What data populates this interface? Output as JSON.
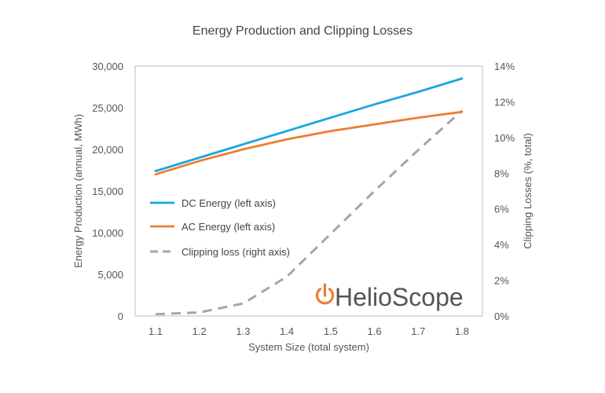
{
  "chart_data": {
    "type": "line",
    "title": "Energy Production and Clipping Losses",
    "xlabel": "System Size (total system)",
    "ylabel_left": "Energy Production (annual, MWh)",
    "ylabel_right": "Clipping Losses  (%, total)",
    "x": [
      1.1,
      1.2,
      1.3,
      1.4,
      1.5,
      1.6,
      1.7,
      1.8
    ],
    "x_tick_labels": [
      "1.1",
      "1.2",
      "1.3",
      "1.4",
      "1.5",
      "1.6",
      "1.7",
      "1.8"
    ],
    "xlim": [
      1.1,
      1.8
    ],
    "ylim_left": [
      0,
      30000
    ],
    "ylim_right": [
      0,
      14
    ],
    "y_left_ticks": [
      0,
      5000,
      10000,
      15000,
      20000,
      25000,
      30000
    ],
    "y_left_tick_labels": [
      "0",
      "5,000",
      "10,000",
      "15,000",
      "20,000",
      "25,000",
      "30,000"
    ],
    "y_right_ticks": [
      0,
      2,
      4,
      6,
      8,
      10,
      12,
      14
    ],
    "y_right_tick_labels": [
      "0%",
      "2%",
      "4%",
      "6%",
      "8%",
      "10%",
      "12%",
      "14%"
    ],
    "grid": false,
    "legend_position": "middle-left",
    "series": [
      {
        "name": "DC Energy (left axis)",
        "axis": "left",
        "color": "#1aa7e0",
        "style": "solid",
        "values": [
          17400,
          19000,
          20600,
          22200,
          23800,
          25400,
          26900,
          28500
        ]
      },
      {
        "name": "AC Energy (left axis)",
        "axis": "left",
        "color": "#ee7d31",
        "style": "solid",
        "values": [
          17000,
          18600,
          20000,
          21200,
          22200,
          23000,
          23800,
          24500
        ]
      },
      {
        "name": "Clipping loss (right axis)",
        "axis": "right",
        "color": "#a6a6a6",
        "style": "dashed",
        "values": [
          0.1,
          0.2,
          0.7,
          2.2,
          4.6,
          7.0,
          9.3,
          11.5
        ]
      }
    ],
    "logo": {
      "text": "HelioScope",
      "icon": "power-icon",
      "icon_color": "#ee7d31"
    }
  }
}
